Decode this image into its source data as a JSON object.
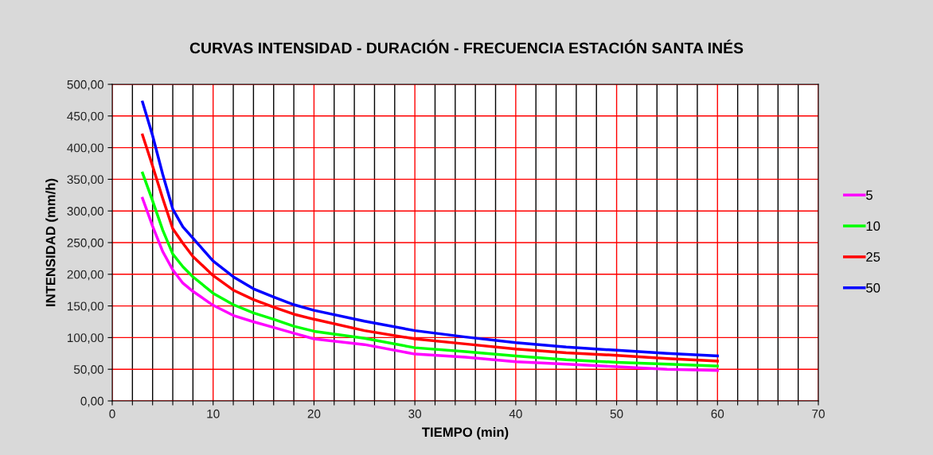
{
  "chart_data": {
    "type": "line",
    "title": "CURVAS INTENSIDAD - DURACIÓN - FRECUENCIA ESTACIÓN SANTA INÉS",
    "xlabel": "TIEMPO (min)",
    "ylabel": "INTENSIDAD (mm/h)",
    "x": [
      3,
      4,
      5,
      6,
      7,
      8,
      10,
      12,
      14,
      16,
      18,
      20,
      25,
      30,
      35,
      40,
      45,
      50,
      55,
      60
    ],
    "series": [
      {
        "name": "5",
        "color": "#ff00ff",
        "values": [
          320,
          276,
          236,
          207,
          186,
          173,
          151,
          135,
          125,
          116,
          107,
          98,
          89,
          74,
          69,
          62,
          58,
          54,
          50,
          48
        ]
      },
      {
        "name": "10",
        "color": "#00ff00",
        "values": [
          360,
          316,
          270,
          232,
          212,
          196,
          170,
          152,
          139,
          129,
          118,
          110,
          99,
          84,
          78,
          71,
          65,
          61,
          58,
          55
        ]
      },
      {
        "name": "25",
        "color": "#ff0000",
        "values": [
          420,
          371,
          320,
          272,
          249,
          228,
          198,
          175,
          160,
          148,
          137,
          129,
          111,
          98,
          90,
          82,
          76,
          72,
          67,
          63
        ]
      },
      {
        "name": "50",
        "color": "#0000ff",
        "values": [
          472,
          419,
          358,
          303,
          275,
          257,
          221,
          196,
          177,
          164,
          152,
          143,
          126,
          111,
          101,
          92,
          85,
          80,
          75,
          71
        ]
      }
    ],
    "xlim": [
      0,
      70
    ],
    "xticks": [
      0,
      {
        "value": 2,
        "label": null
      },
      {
        "value": 4,
        "label": null
      },
      {
        "value": 6,
        "label": null
      },
      {
        "value": 8,
        "label": null
      },
      10,
      {
        "value": 12,
        "label": null
      },
      {
        "value": 14,
        "label": null
      },
      {
        "value": 16,
        "label": null
      },
      {
        "value": 18,
        "label": null
      },
      20,
      {
        "value": 22,
        "label": null
      },
      {
        "value": 24,
        "label": null
      },
      {
        "value": 26,
        "label": null
      },
      {
        "value": 28,
        "label": null
      },
      30,
      {
        "value": 32,
        "label": null
      },
      {
        "value": 34,
        "label": null
      },
      {
        "value": 36,
        "label": null
      },
      {
        "value": 38,
        "label": null
      },
      40,
      {
        "value": 42,
        "label": null
      },
      {
        "value": 44,
        "label": null
      },
      {
        "value": 46,
        "label": null
      },
      {
        "value": 48,
        "label": null
      },
      50,
      {
        "value": 52,
        "label": null
      },
      {
        "value": 54,
        "label": null
      },
      {
        "value": 56,
        "label": null
      },
      {
        "value": 58,
        "label": null
      },
      60,
      {
        "value": 62,
        "label": null
      },
      {
        "value": 64,
        "label": null
      },
      {
        "value": 66,
        "label": null
      },
      {
        "value": 68,
        "label": null
      },
      70
    ],
    "ylim": [
      0,
      500
    ],
    "yticks": [
      {
        "value": 0,
        "label": "0,00"
      },
      {
        "value": 50,
        "label": "50,00"
      },
      {
        "value": 100,
        "label": "100,00"
      },
      {
        "value": 150,
        "label": "150,00"
      },
      {
        "value": 200,
        "label": "200,00"
      },
      {
        "value": 250,
        "label": "250,00"
      },
      {
        "value": 300,
        "label": "300,00"
      },
      {
        "value": 350,
        "label": "350,00"
      },
      {
        "value": 400,
        "label": "400,00"
      },
      {
        "value": 450,
        "label": "450,00"
      },
      {
        "value": 500,
        "label": "500,00"
      }
    ],
    "grid": true,
    "legend": "right",
    "marker": "none",
    "line_style": "solid"
  }
}
